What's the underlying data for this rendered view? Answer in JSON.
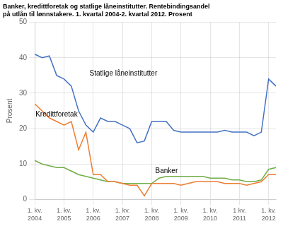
{
  "chart_data": {
    "type": "line",
    "title": [
      "Banker, kredittforetak og statlige låneinstitutter. Rentebindingsandel",
      "på utlån til lønnstakere. 1. kvartal 2004-2. kvartal 2012. Prosent"
    ],
    "y_label": "Prosent",
    "categories": [
      "1. kv.\n2004",
      null,
      null,
      null,
      "1. kv.\n2005",
      null,
      null,
      null,
      "1. kv.\n2006",
      null,
      null,
      null,
      "1. kv.\n2007",
      null,
      null,
      null,
      "1. kv.\n2008",
      null,
      null,
      null,
      "1. kv.\n2009",
      null,
      null,
      null,
      "1. kv.\n2010",
      null,
      null,
      null,
      "1 kv.\n2011",
      null,
      null,
      null,
      "1. kv.\n2012",
      null
    ],
    "series": [
      {
        "name": "Statlige låneinstitutter",
        "color": "#4472C4",
        "values": [
          41,
          40,
          40.5,
          35,
          34,
          32,
          25,
          21,
          19,
          23,
          22,
          22,
          21,
          20,
          16,
          16.5,
          22,
          22,
          22,
          19.5,
          19,
          19,
          19,
          19,
          19,
          19,
          19.5,
          19,
          19,
          19,
          18,
          19,
          34,
          32
        ]
      },
      {
        "name": "Kredittforetak",
        "color": "#ED7D31",
        "values": [
          27,
          25,
          23,
          22,
          21,
          22,
          14,
          19,
          7,
          7,
          5,
          5,
          4.5,
          4,
          4,
          1,
          4.5,
          4.5,
          4.5,
          4.5,
          4,
          4.5,
          5,
          5,
          5,
          5,
          4.5,
          4.5,
          4.5,
          4,
          4.5,
          5,
          7,
          7
        ]
      },
      {
        "name": "Banker",
        "color": "#70AD47",
        "values": [
          11,
          10,
          9.5,
          9,
          9,
          8,
          7,
          6.5,
          6,
          5.5,
          5,
          5,
          4.5,
          4.5,
          4.5,
          4.5,
          4.5,
          6,
          6.5,
          6.5,
          6.5,
          6.5,
          6.5,
          6.5,
          6,
          6,
          6,
          5.5,
          5.5,
          5,
          5,
          5.5,
          8.5,
          9
        ]
      }
    ],
    "annotations": [
      {
        "text": "Statlige låneinstitutter",
        "x": 7.5,
        "y": 35
      },
      {
        "text": "Kredittforetak",
        "x": 0.1,
        "y": 23.5
      },
      {
        "text": "Banker",
        "x": 16.5,
        "y": 7.5
      }
    ],
    "ylim": [
      0,
      50
    ],
    "yticks": [
      0,
      10,
      20,
      30,
      40,
      50
    ],
    "grid": true
  }
}
